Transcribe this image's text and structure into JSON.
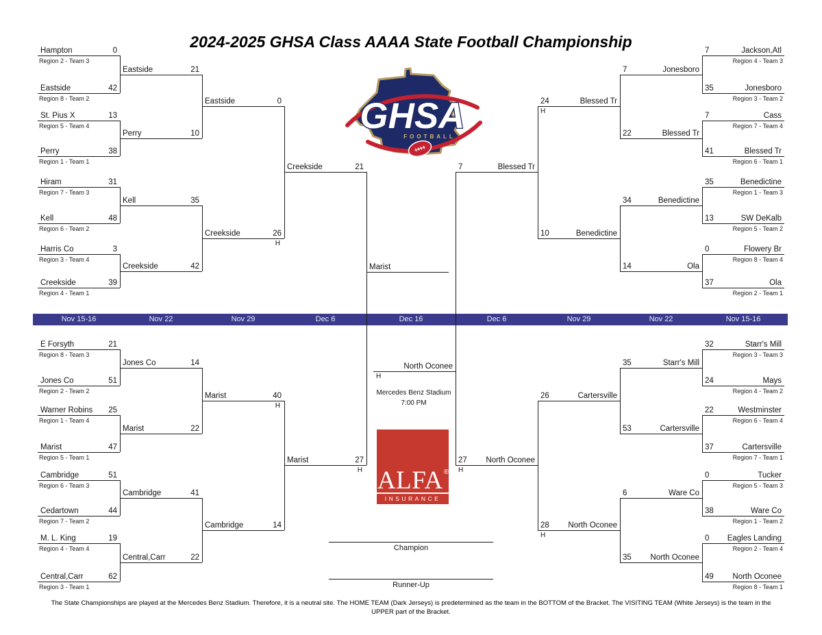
{
  "title": "2024-2025 GHSA Class AAAA State Football Championship",
  "date_bar": [
    "Nov 15-16",
    "Nov 22",
    "Nov 29",
    "Dec 6",
    "Dec 16",
    "Dec 6",
    "Nov 29",
    "Nov 22",
    "Nov 15-16"
  ],
  "bracket": {
    "left": {
      "round1": [
        {
          "name": "Hampton",
          "score": "0",
          "region": "Region 2 - Team 3"
        },
        {
          "name": "Eastside",
          "score": "42",
          "region": "Region 8 - Team 2"
        },
        {
          "name": "St. Pius X",
          "score": "13",
          "region": "Region 5 - Team 4"
        },
        {
          "name": "Perry",
          "score": "38",
          "region": "Region 1 - Team 1"
        },
        {
          "name": "Hiram",
          "score": "31",
          "region": "Region 7 - Team 3"
        },
        {
          "name": "Kell",
          "score": "48",
          "region": "Region 6 - Team 2"
        },
        {
          "name": "Harris Co",
          "score": "3",
          "region": "Region 3 - Team 4"
        },
        {
          "name": "Creekside",
          "score": "39",
          "region": "Region 4 - Team 1"
        },
        {
          "name": "E Forsyth",
          "score": "21",
          "region": "Region 8 - Team 3"
        },
        {
          "name": "Jones Co",
          "score": "51",
          "region": "Region 2 - Team 2"
        },
        {
          "name": "Warner Robins",
          "score": "25",
          "region": "Region 1 - Team 4"
        },
        {
          "name": "Marist",
          "score": "47",
          "region": "Region 5 - Team 1"
        },
        {
          "name": "Cambridge",
          "score": "51",
          "region": "Region 6 - Team 3"
        },
        {
          "name": "Cedartown",
          "score": "44",
          "region": "Region 7 - Team 2"
        },
        {
          "name": "M. L. King",
          "score": "19",
          "region": "Region 4 - Team 4"
        },
        {
          "name": "Central,Carr",
          "score": "62",
          "region": "Region 3 - Team 1"
        }
      ],
      "round2": [
        {
          "name": "Eastside",
          "score": "21"
        },
        {
          "name": "Perry",
          "score": "10"
        },
        {
          "name": "Kell",
          "score": "35"
        },
        {
          "name": "Creekside",
          "score": "42"
        },
        {
          "name": "Jones Co",
          "score": "14"
        },
        {
          "name": "Marist",
          "score": "22"
        },
        {
          "name": "Cambridge",
          "score": "41"
        },
        {
          "name": "Central,Carr",
          "score": "22"
        }
      ],
      "round3": [
        {
          "name": "Eastside",
          "score": "0"
        },
        {
          "name": "Creekside",
          "score": "26",
          "home": true
        },
        {
          "name": "Marist",
          "score": "40",
          "home": true
        },
        {
          "name": "Cambridge",
          "score": "14"
        }
      ],
      "semifinal": [
        {
          "name": "Creekside",
          "score": "21"
        },
        {
          "name": "Marist",
          "score": "27",
          "home": true
        }
      ],
      "finalist": {
        "name": "Marist"
      }
    },
    "right": {
      "round1": [
        {
          "name": "Jackson,Atl",
          "score": "7",
          "region": "Region 4 - Team 3"
        },
        {
          "name": "Jonesboro",
          "score": "35",
          "region": "Region 3 - Team 2"
        },
        {
          "name": "Cass",
          "score": "7",
          "region": "Region 7 - Team 4"
        },
        {
          "name": "Blessed Tr",
          "score": "41",
          "region": "Region 6 - Team 1"
        },
        {
          "name": "Benedictine",
          "score": "35",
          "region": "Region 1 - Team 3"
        },
        {
          "name": "SW DeKalb",
          "score": "13",
          "region": "Region 5 - Team 2"
        },
        {
          "name": "Flowery Br",
          "score": "0",
          "region": "Region 8 - Team 4"
        },
        {
          "name": "Ola",
          "score": "37",
          "region": "Region 2 - Team 1"
        },
        {
          "name": "Starr's Mill",
          "score": "32",
          "region": "Region 3 - Team 3"
        },
        {
          "name": "Mays",
          "score": "24",
          "region": "Region 4 - Team 2"
        },
        {
          "name": "Westminster",
          "score": "22",
          "region": "Region 6 - Team 4"
        },
        {
          "name": "Cartersville",
          "score": "37",
          "region": "Region 7 - Team 1"
        },
        {
          "name": "Tucker",
          "score": "0",
          "region": "Region 5 - Team 3"
        },
        {
          "name": "Ware Co",
          "score": "38",
          "region": "Region 1 - Team 2"
        },
        {
          "name": "Eagles Landing",
          "score": "0",
          "region": "Region 2 - Team 4"
        },
        {
          "name": "North Oconee",
          "score": "49",
          "region": "Region 8 - Team 1"
        }
      ],
      "round2": [
        {
          "name": "Jonesboro",
          "score": "7"
        },
        {
          "name": "Blessed Tr",
          "score": "22"
        },
        {
          "name": "Benedictine",
          "score": "34"
        },
        {
          "name": "Ola",
          "score": "14"
        },
        {
          "name": "Starr's Mill",
          "score": "35"
        },
        {
          "name": "Cartersville",
          "score": "53"
        },
        {
          "name": "Ware Co",
          "score": "6"
        },
        {
          "name": "North Oconee",
          "score": "35"
        }
      ],
      "round3": [
        {
          "name": "Blessed Tr",
          "score": "24",
          "home": true
        },
        {
          "name": "Benedictine",
          "score": "10"
        },
        {
          "name": "Cartersville",
          "score": "26"
        },
        {
          "name": "North Oconee",
          "score": "28",
          "home": true
        }
      ],
      "semifinal": [
        {
          "name": "Blessed Tr",
          "score": "7"
        },
        {
          "name": "North Oconee",
          "score": "27",
          "home": true
        }
      ],
      "finalist": {
        "name": "North Oconee",
        "home": true
      }
    }
  },
  "championship": {
    "home_marker": "H",
    "venue": "Mercedes Benz Stadium",
    "time": "7:00 PM",
    "champion_label": "Champion",
    "runner_up_label": "Runner-Up"
  },
  "logos": {
    "ghsa": {
      "text": "GHSA",
      "subtext": "FOOTBALL"
    },
    "alfa": {
      "text": "ALFA",
      "reg": "®",
      "subtext": "INSURANCE"
    }
  },
  "footer": "The State Championships are played at the Mercedes Benz Stadium. Therefore, it is a neutral site. The HOME TEAM (Dark Jerseys) is predetermined as the team in the BOTTOM of the Bracket. The VISITING TEAM (White Jerseys) is the team in the UPPER part of the Bracket.",
  "colors": {
    "date_bar": "#3b3b8d",
    "alfa_red": "#c6392f",
    "ghsa_navy": "#1d2a67",
    "ghsa_red": "#c52130",
    "ghsa_gold": "#b49a5e",
    "line": "#1a1a1a"
  }
}
